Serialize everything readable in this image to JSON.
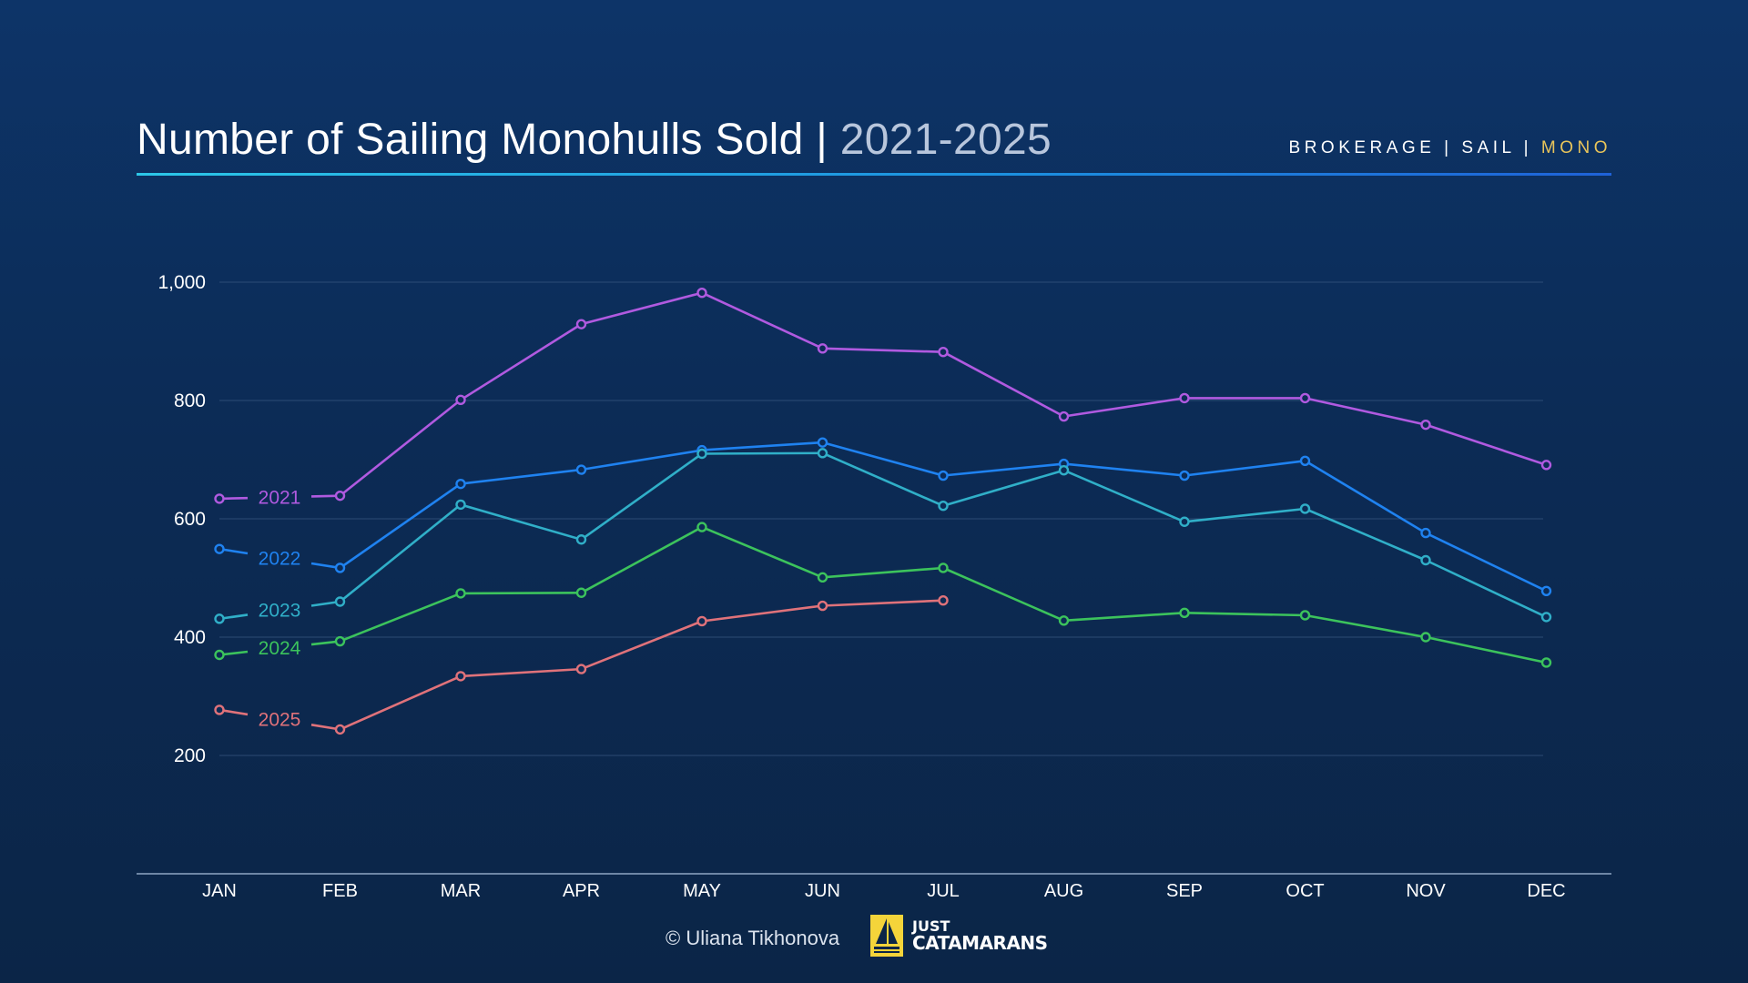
{
  "header": {
    "title_main": "Number of Sailing Monohulls Sold",
    "title_sep": " | ",
    "title_years": "2021-2025",
    "tags": [
      "BROKERAGE",
      "SAIL",
      "MONO"
    ],
    "tag_sep": " | "
  },
  "footer": {
    "credit": "© Uliana Tikhonova",
    "logo_line1": "JUST",
    "logo_line2": "CATAMARANS"
  },
  "colors": {
    "accent": "#e8c45a",
    "2021": "#b05ae0",
    "2022": "#1f82f0",
    "2023": "#30afc8",
    "2024": "#3cc35c",
    "2025": "#e0727a"
  },
  "chart_data": {
    "type": "line",
    "title": "Number of Sailing Monohulls Sold | 2021-2025",
    "categories": [
      "JAN",
      "FEB",
      "MAR",
      "APR",
      "MAY",
      "JUN",
      "JUL",
      "AUG",
      "SEP",
      "OCT",
      "NOV",
      "DEC"
    ],
    "y_ticks": [
      "200",
      "400",
      "600",
      "800",
      "1,000"
    ],
    "ylim": [
      0,
      1000
    ],
    "grid": true,
    "legend": "inline labels at left",
    "series": [
      {
        "name": "2021",
        "values": [
          634,
          639,
          801,
          929,
          982,
          888,
          882,
          773,
          804,
          804,
          759,
          691
        ]
      },
      {
        "name": "2022",
        "values": [
          549,
          517,
          659,
          683,
          716,
          729,
          673,
          693,
          673,
          698,
          576,
          478
        ]
      },
      {
        "name": "2023",
        "values": [
          431,
          460,
          624,
          565,
          710,
          711,
          622,
          682,
          595,
          617,
          530,
          434
        ]
      },
      {
        "name": "2024",
        "values": [
          370,
          393,
          474,
          475,
          586,
          501,
          517,
          428,
          441,
          437,
          400,
          357
        ]
      },
      {
        "name": "2025",
        "values": [
          277,
          244,
          334,
          346,
          427,
          453,
          462,
          null,
          null,
          null,
          null,
          null
        ]
      }
    ]
  }
}
